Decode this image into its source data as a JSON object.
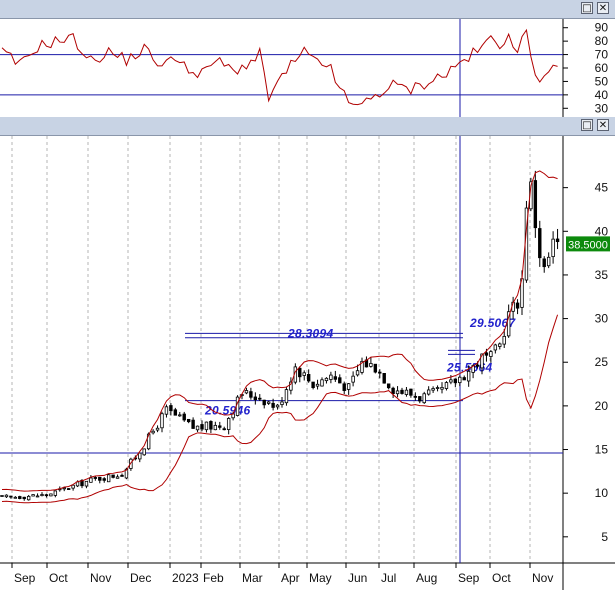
{
  "window": {
    "buttons": [
      {
        "name": "restore",
        "glyph": "□"
      },
      {
        "name": "close",
        "glyph": "✕"
      }
    ]
  },
  "indicator": {
    "ylim": [
      25,
      95
    ],
    "ticks": [
      90,
      80,
      70,
      60,
      50,
      40,
      30
    ],
    "levels": [
      70,
      40
    ]
  },
  "chart_data": {
    "type": "candlestick",
    "ylim": [
      2,
      50
    ],
    "yticks": [
      45,
      40,
      35,
      30,
      25,
      20,
      15,
      10,
      5
    ],
    "x_tick_labels": [
      "Sep",
      "Oct",
      "Nov",
      "Dec",
      "2023",
      "Feb",
      "Mar",
      "Apr",
      "May",
      "Jun",
      "Jul",
      "Aug",
      "Sep",
      "Oct",
      "Nov"
    ],
    "last_price_label": "38.5000",
    "last_price": 38.5,
    "horizontal_levels": [
      {
        "value": 28.3094,
        "label": "28.3094"
      },
      {
        "value": 27.8,
        "label": ""
      },
      {
        "value": 20.5946,
        "label": "20.5946"
      },
      {
        "value": 14.6,
        "label": ""
      }
    ],
    "annotations": [
      {
        "label": "29.5067",
        "value": 29.5067
      },
      {
        "label": "25.5564",
        "value": 25.5564
      }
    ],
    "price_path": [
      [
        0,
        9.5
      ],
      [
        10,
        9.8
      ],
      [
        20,
        11.5
      ],
      [
        27,
        12.2
      ],
      [
        32,
        15.5
      ],
      [
        37,
        19.5
      ],
      [
        43,
        17.5
      ],
      [
        50,
        17.8
      ],
      [
        54,
        21.5
      ],
      [
        58,
        21.0
      ],
      [
        62,
        19.8
      ],
      [
        66,
        24.5
      ],
      [
        70,
        22.5
      ],
      [
        74,
        23.5
      ],
      [
        78,
        22.0
      ],
      [
        81,
        25.0
      ],
      [
        84,
        24.5
      ],
      [
        88,
        22.0
      ],
      [
        91,
        21.5
      ],
      [
        94,
        21.0
      ],
      [
        98,
        21.5
      ],
      [
        101,
        22.5
      ],
      [
        105,
        24.0
      ],
      [
        108,
        25.5
      ],
      [
        110,
        25.5
      ],
      [
        112,
        27.0
      ],
      [
        114,
        30.5
      ],
      [
        116,
        32.0
      ],
      [
        117,
        34.5
      ],
      [
        118,
        43.5
      ],
      [
        119,
        45.0
      ],
      [
        120,
        41.0
      ],
      [
        121,
        37.5
      ],
      [
        122,
        35.5
      ],
      [
        123,
        37.0
      ],
      [
        124,
        38.5
      ],
      [
        125,
        38.5
      ]
    ],
    "rsi_path": [
      [
        0,
        72
      ],
      [
        4,
        62
      ],
      [
        8,
        76
      ],
      [
        12,
        80
      ],
      [
        16,
        82
      ],
      [
        20,
        65
      ],
      [
        24,
        72
      ],
      [
        28,
        66
      ],
      [
        32,
        74
      ],
      [
        36,
        62
      ],
      [
        40,
        68
      ],
      [
        44,
        52
      ],
      [
        48,
        66
      ],
      [
        52,
        58
      ],
      [
        56,
        64
      ],
      [
        58,
        70
      ],
      [
        60,
        38
      ],
      [
        64,
        58
      ],
      [
        68,
        72
      ],
      [
        72,
        60
      ],
      [
        74,
        63
      ],
      [
        76,
        42
      ],
      [
        80,
        30
      ],
      [
        84,
        40
      ],
      [
        88,
        47
      ],
      [
        92,
        44
      ],
      [
        96,
        50
      ],
      [
        100,
        56
      ],
      [
        104,
        66
      ],
      [
        108,
        75
      ],
      [
        110,
        82
      ],
      [
        112,
        76
      ],
      [
        114,
        88
      ],
      [
        116,
        70
      ],
      [
        118,
        88
      ],
      [
        120,
        56
      ],
      [
        122,
        52
      ],
      [
        124,
        58
      ],
      [
        125,
        57
      ]
    ]
  }
}
